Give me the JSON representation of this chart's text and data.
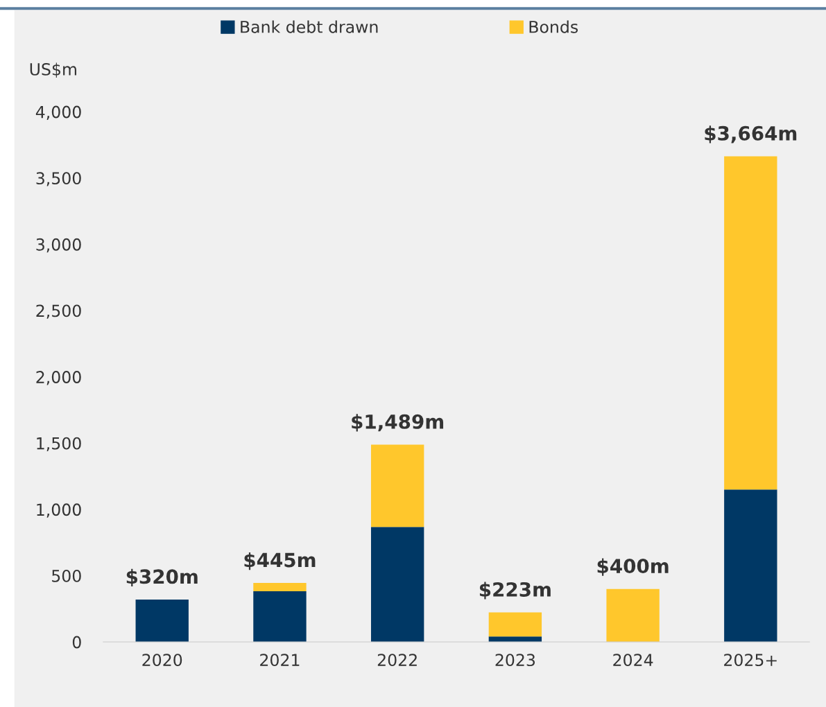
{
  "chart_data": {
    "type": "bar",
    "stacked": true,
    "ylabel": "US$m",
    "categories": [
      "2020",
      "2021",
      "2022",
      "2023",
      "2024",
      "2025+"
    ],
    "series": [
      {
        "name": "Bank debt drawn",
        "color": "#003865",
        "values": [
          320,
          382,
          868,
          42,
          0,
          1150
        ]
      },
      {
        "name": "Bonds",
        "color": "#ffc72c",
        "values": [
          0,
          63,
          621,
          181,
          400,
          2514
        ]
      }
    ],
    "totals": [
      "$320m",
      "$445m",
      "$1,489m",
      "$223m",
      "$400m",
      "$3,664m"
    ],
    "ylim": [
      0,
      4000
    ],
    "yticks": [
      {
        "value": 0,
        "label": "0"
      },
      {
        "value": 500,
        "label": "500"
      },
      {
        "value": 1000,
        "label": "1,000"
      },
      {
        "value": 1500,
        "label": "1,500"
      },
      {
        "value": 2000,
        "label": "2,000"
      },
      {
        "value": 2500,
        "label": "2,500"
      },
      {
        "value": 3000,
        "label": "3,000"
      },
      {
        "value": 3500,
        "label": "3,500"
      },
      {
        "value": 4000,
        "label": "4,000"
      }
    ],
    "grid": false,
    "legend": "top"
  }
}
